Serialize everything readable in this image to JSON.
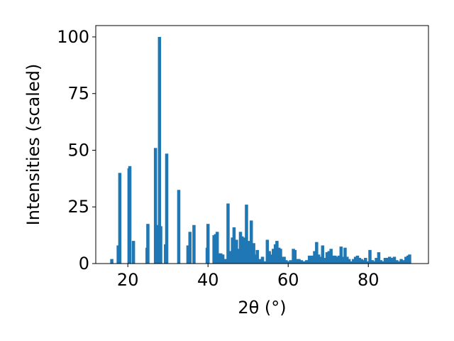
{
  "chart_data": {
    "type": "bar",
    "title": "",
    "xlabel": "2θ (°)",
    "ylabel": "Intensities (scaled)",
    "xlim": [
      12,
      95
    ],
    "ylim": [
      0,
      105
    ],
    "xticks": [
      20,
      40,
      60,
      80
    ],
    "xtick_labels": [
      "20",
      "40",
      "60",
      "80"
    ],
    "yticks": [
      0,
      25,
      50,
      75,
      100
    ],
    "ytick_labels": [
      "0",
      "25",
      "50",
      "75",
      "100"
    ],
    "grid": false,
    "legend": "none",
    "bar_color": "#1f77b4",
    "bar_width": 0.8,
    "x": [
      16.0,
      17.6,
      18.0,
      20.3,
      20.5,
      21.4,
      24.8,
      25.0,
      26.9,
      27.3,
      27.9,
      28.2,
      29.4,
      29.7,
      32.7,
      35.0,
      35.5,
      36.5,
      39.8,
      40.0,
      41.5,
      41.9,
      42.3,
      42.8,
      43.2,
      43.7,
      44.1,
      44.6,
      45.0,
      45.6,
      46.1,
      46.5,
      47.1,
      47.5,
      48.1,
      48.5,
      49.0,
      49.6,
      50.2,
      50.8,
      51.4,
      51.9,
      52.3,
      53.0,
      53.6,
      54.2,
      54.8,
      55.3,
      55.8,
      56.3,
      56.8,
      57.2,
      57.7,
      58.1,
      58.5,
      59.0,
      59.5,
      60.0,
      60.6,
      61.3,
      61.7,
      62.2,
      62.7,
      63.3,
      64.0,
      64.6,
      65.3,
      66.0,
      66.6,
      67.1,
      67.6,
      68.1,
      68.6,
      69.2,
      69.7,
      70.2,
      70.7,
      71.2,
      71.7,
      72.2,
      72.7,
      73.2,
      73.7,
      74.2,
      74.7,
      75.2,
      75.8,
      76.3,
      76.8,
      77.3,
      77.8,
      78.3,
      78.8,
      79.3,
      79.9,
      80.4,
      81.0,
      81.5,
      82.0,
      82.6,
      83.1,
      83.6,
      84.2,
      84.8,
      85.3,
      85.9,
      86.5,
      87.1,
      87.6,
      88.2,
      88.8,
      89.4,
      89.9,
      90.3
    ],
    "values": [
      2,
      8,
      40,
      42,
      43,
      10,
      7,
      17.5,
      51,
      17,
      100,
      16.5,
      8.5,
      48.5,
      32.5,
      8,
      14,
      17,
      7,
      17.5,
      12.5,
      13,
      14,
      4.5,
      4.5,
      4,
      2,
      2,
      26.5,
      5.5,
      11.5,
      16,
      10.5,
      6.5,
      14,
      12,
      11.5,
      26,
      10,
      19,
      9,
      4,
      6,
      2,
      3,
      1,
      10.5,
      5.5,
      4,
      6.5,
      8.5,
      10,
      7,
      6.5,
      3,
      3,
      1.5,
      1,
      1.5,
      6.5,
      6,
      2,
      2,
      1.5,
      1,
      1.5,
      3.5,
      3.5,
      5.5,
      9.5,
      4,
      3,
      8,
      2.5,
      5,
      5.5,
      6.5,
      3.5,
      3.5,
      3,
      3.5,
      7.5,
      3,
      7,
      3,
      2,
      1,
      2,
      3,
      3.5,
      2.5,
      2,
      1.5,
      2.5,
      1,
      6,
      1.5,
      1,
      2.5,
      5,
      1.5,
      1,
      2.5,
      2.5,
      3,
      2.5,
      3,
      1.5,
      1,
      2,
      1.5,
      3,
      3.5,
      4
    ]
  }
}
